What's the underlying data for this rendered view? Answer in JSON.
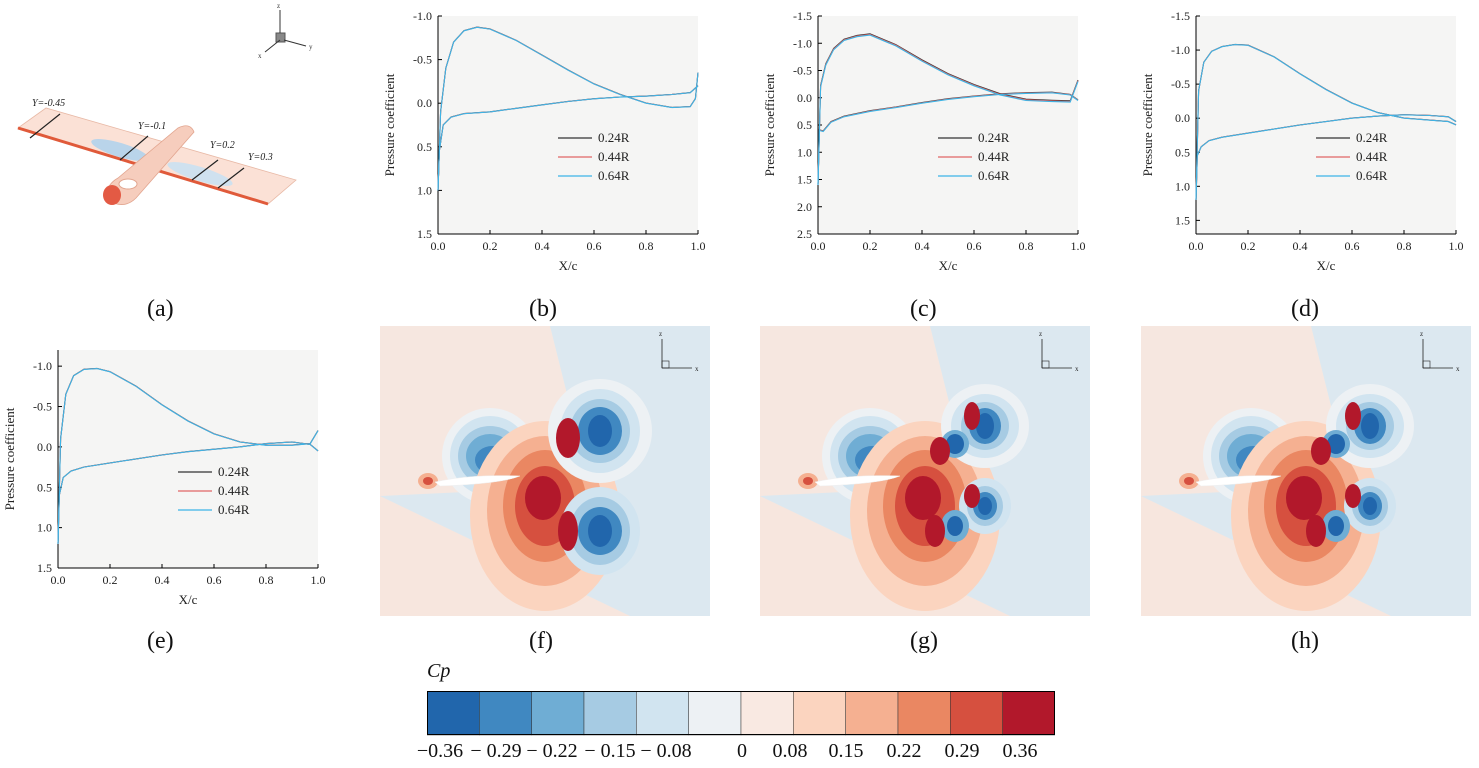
{
  "chart_data": [
    {
      "panel": "a",
      "type": "other",
      "sections": [
        "Y=-0.45",
        "Y=-0.1",
        "Y=0.2",
        "Y=0.3"
      ],
      "triad_axes": [
        "z",
        "x",
        "y"
      ]
    },
    {
      "panel": "b",
      "type": "line",
      "xlabel": "X/c",
      "ylabel": "Pressure coefficient",
      "xlim": [
        0,
        1
      ],
      "ylim": [
        1.5,
        -1.0
      ],
      "y_inverted": true,
      "xticks": [
        "0.0",
        "0.2",
        "0.4",
        "0.6",
        "0.8",
        "1.0"
      ],
      "yticks": [
        "-1.0",
        "-0.5",
        "0.0",
        "0.5",
        "1.0",
        "1.5"
      ],
      "legend": [
        "0.24R",
        "0.44R",
        "0.64R"
      ],
      "upper": {
        "x": [
          0,
          0.01,
          0.03,
          0.06,
          0.1,
          0.15,
          0.2,
          0.3,
          0.4,
          0.5,
          0.6,
          0.7,
          0.8,
          0.9,
          0.97,
          0.99,
          1.0
        ],
        "y": [
          1.0,
          0.1,
          -0.4,
          -0.7,
          -0.83,
          -0.87,
          -0.85,
          -0.72,
          -0.55,
          -0.38,
          -0.22,
          -0.1,
          0.0,
          0.05,
          0.04,
          -0.05,
          -0.35
        ]
      },
      "lower": {
        "x": [
          0,
          0.005,
          0.02,
          0.05,
          0.1,
          0.2,
          0.3,
          0.4,
          0.5,
          0.6,
          0.7,
          0.8,
          0.9,
          0.97,
          1.0
        ],
        "y": [
          1.0,
          0.55,
          0.25,
          0.16,
          0.12,
          0.1,
          0.06,
          0.02,
          -0.02,
          -0.05,
          -0.07,
          -0.08,
          -0.1,
          -0.12,
          -0.2
        ]
      }
    },
    {
      "panel": "c",
      "type": "line",
      "xlabel": "X/c",
      "ylabel": "Pressure coefficient",
      "xlim": [
        0,
        1
      ],
      "ylim": [
        2.5,
        -1.5
      ],
      "y_inverted": true,
      "xticks": [
        "0.0",
        "0.2",
        "0.4",
        "0.6",
        "0.8",
        "1.0"
      ],
      "yticks": [
        "-1.5",
        "-1.0",
        "-0.5",
        "0.0",
        "0.5",
        "1.0",
        "1.5",
        "2.0",
        "2.5"
      ],
      "legend": [
        "0.24R",
        "0.44R",
        "0.64R"
      ],
      "upper": {
        "x": [
          0,
          0.01,
          0.03,
          0.06,
          0.1,
          0.15,
          0.2,
          0.3,
          0.4,
          0.5,
          0.6,
          0.7,
          0.8,
          0.9,
          0.97,
          1.0
        ],
        "y": [
          1.6,
          -0.2,
          -0.6,
          -0.88,
          -1.05,
          -1.12,
          -1.15,
          -0.95,
          -0.67,
          -0.42,
          -0.22,
          -0.05,
          0.05,
          0.07,
          0.08,
          -0.3
        ]
      },
      "lower": {
        "x": [
          0,
          0.005,
          0.02,
          0.05,
          0.1,
          0.2,
          0.3,
          0.4,
          0.5,
          0.6,
          0.7,
          0.8,
          0.9,
          0.97,
          1.0
        ],
        "y": [
          1.6,
          0.6,
          0.62,
          0.45,
          0.35,
          0.25,
          0.18,
          0.1,
          0.03,
          -0.02,
          -0.06,
          -0.08,
          -0.09,
          -0.05,
          0.05
        ]
      }
    },
    {
      "panel": "d",
      "type": "line",
      "xlabel": "X/c",
      "ylabel": "Pressure coefficient",
      "xlim": [
        0,
        1
      ],
      "ylim": [
        1.7,
        -1.5
      ],
      "y_inverted": true,
      "xticks": [
        "0.0",
        "0.2",
        "0.4",
        "0.6",
        "0.8",
        "1.0"
      ],
      "yticks": [
        "-1.5",
        "-1.0",
        "-0.5",
        "0.0",
        "0.5",
        "1.0",
        "1.5"
      ],
      "legend": [
        "0.24R",
        "0.44R",
        "0.64R"
      ],
      "upper": {
        "x": [
          0,
          0.01,
          0.03,
          0.06,
          0.1,
          0.15,
          0.2,
          0.3,
          0.4,
          0.5,
          0.6,
          0.7,
          0.8,
          0.9,
          0.97,
          1.0
        ],
        "y": [
          1.2,
          -0.4,
          -0.82,
          -0.98,
          -1.05,
          -1.08,
          -1.07,
          -0.9,
          -0.65,
          -0.42,
          -0.22,
          -0.08,
          0.0,
          0.03,
          0.05,
          0.1
        ]
      },
      "lower": {
        "x": [
          0,
          0.005,
          0.02,
          0.05,
          0.1,
          0.2,
          0.3,
          0.4,
          0.5,
          0.6,
          0.7,
          0.8,
          0.9,
          0.97,
          1.0
        ],
        "y": [
          1.2,
          0.55,
          0.42,
          0.33,
          0.28,
          0.22,
          0.16,
          0.1,
          0.05,
          0.0,
          -0.03,
          -0.05,
          -0.04,
          -0.02,
          0.05
        ]
      }
    },
    {
      "panel": "e",
      "type": "line",
      "xlabel": "X/c",
      "ylabel": "Pressure coefficient",
      "xlim": [
        0,
        1
      ],
      "ylim": [
        1.5,
        -1.2
      ],
      "y_inverted": true,
      "xticks": [
        "0.0",
        "0.2",
        "0.4",
        "0.6",
        "0.8",
        "1.0"
      ],
      "yticks": [
        "-1.0",
        "-0.5",
        "0.0",
        "0.5",
        "1.0",
        "1.5"
      ],
      "legend": [
        "0.24R",
        "0.44R",
        "0.64R"
      ],
      "upper": {
        "x": [
          0,
          0.01,
          0.03,
          0.06,
          0.1,
          0.15,
          0.2,
          0.3,
          0.4,
          0.5,
          0.6,
          0.7,
          0.8,
          0.9,
          0.97,
          1.0
        ],
        "y": [
          1.2,
          -0.1,
          -0.65,
          -0.88,
          -0.96,
          -0.97,
          -0.93,
          -0.75,
          -0.52,
          -0.32,
          -0.16,
          -0.06,
          -0.02,
          -0.02,
          -0.04,
          -0.2
        ]
      },
      "lower": {
        "x": [
          0,
          0.005,
          0.02,
          0.05,
          0.1,
          0.2,
          0.3,
          0.4,
          0.5,
          0.6,
          0.7,
          0.8,
          0.9,
          0.97,
          1.0
        ],
        "y": [
          1.2,
          0.6,
          0.38,
          0.3,
          0.25,
          0.2,
          0.15,
          0.1,
          0.06,
          0.03,
          0.0,
          -0.04,
          -0.06,
          -0.03,
          0.05
        ]
      }
    },
    {
      "panel": "f",
      "type": "heatmap",
      "triad_axes": [
        "z",
        "x"
      ]
    },
    {
      "panel": "g",
      "type": "heatmap",
      "triad_axes": [
        "z",
        "x"
      ]
    },
    {
      "panel": "h",
      "type": "heatmap",
      "triad_axes": [
        "z",
        "x"
      ]
    },
    {
      "panel": "colorbar",
      "type": "colorbar",
      "title": "Cp",
      "range": [
        -0.36,
        0.36
      ],
      "tick_labels": [
        "−0.36",
        "− 0.29",
        "− 0.22",
        "− 0.15",
        "− 0.08",
        "0",
        "0.08",
        "0.15",
        "0.22",
        "0.29",
        "0.36"
      ],
      "colors": [
        "#2166ac",
        "#4088c1",
        "#6fadd4",
        "#a6cbe3",
        "#d1e4f0",
        "#edf1f4",
        "#f9e9e2",
        "#fbd4bf",
        "#f5b091",
        "#ea8762",
        "#d6503f",
        "#b2182b"
      ]
    }
  ],
  "labels": {
    "a": "(a)",
    "b": "(b)",
    "c": "(c)",
    "d": "(d)",
    "e": "(e)",
    "f": "(f)",
    "g": "(g)",
    "h": "(h)"
  }
}
